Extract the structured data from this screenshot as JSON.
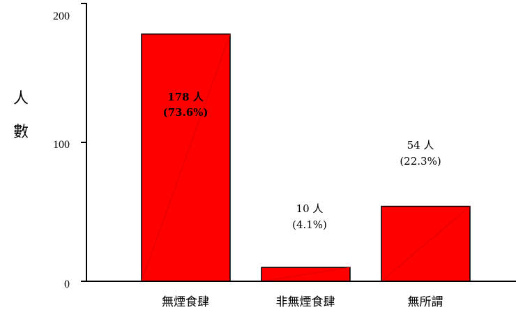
{
  "chart_data": {
    "type": "bar",
    "categories": [
      "無煙食肆",
      "非無煙食肆",
      "無所謂"
    ],
    "values": [
      178,
      10,
      54
    ],
    "data_labels": [
      {
        "count": "178 人",
        "percent": "(73.6%)",
        "bold": true
      },
      {
        "count": "10 人",
        "percent": "(4.1%)",
        "bold": false
      },
      {
        "count": "54 人",
        "percent": "(22.3%)",
        "bold": false
      }
    ],
    "ylabel": "人數",
    "yticks": [
      "0",
      "100",
      "200"
    ],
    "ylim": [
      0,
      200
    ],
    "bar_color": "#ff0000",
    "bar_edge_color": "#000000",
    "grid": false,
    "legend": "none"
  }
}
